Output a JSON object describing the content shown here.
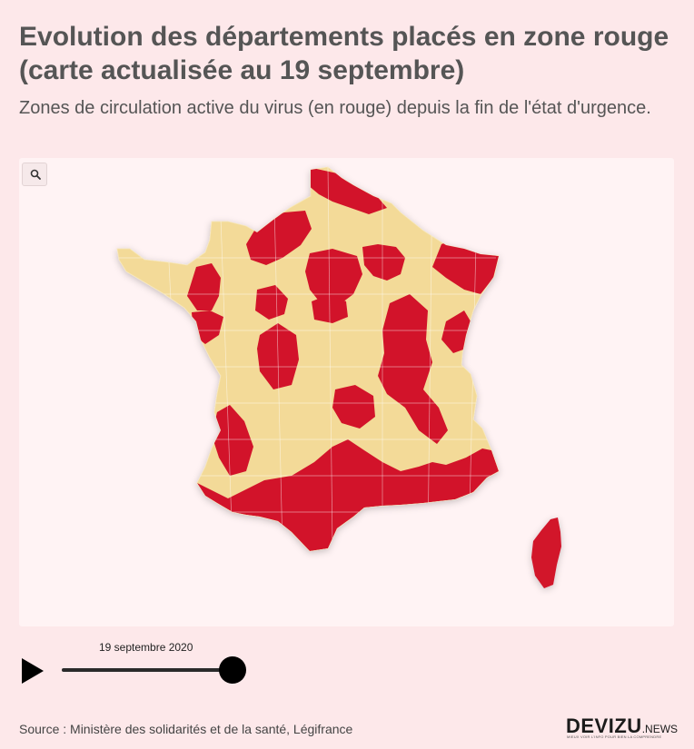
{
  "header": {
    "title": "Evolution des départements placés en zone rouge (carte actualisée au 19 septembre)",
    "subtitle": "Zones de circulation active du virus (en rouge) depuis la fin de l'état d'urgence."
  },
  "map": {
    "legend_colors": {
      "zone_rouge": "#d2132a",
      "autre": "#f3da98"
    },
    "zoom_icon": "search-icon",
    "regions": [
      {
        "name": "",
        "zone": "rouge"
      }
    ]
  },
  "timeline": {
    "current_date": "19 septembre 2020",
    "position": 1.0,
    "play_icon": "play-icon"
  },
  "footer": {
    "source": "Source : Ministère des solidarités et de la santé, Légifrance",
    "logo_main": "DEVIZU",
    "logo_suffix": ".NEWS",
    "logo_tagline": "MIEUX VOIR L'INFO POUR BIEN LA COMPRENDRE"
  }
}
